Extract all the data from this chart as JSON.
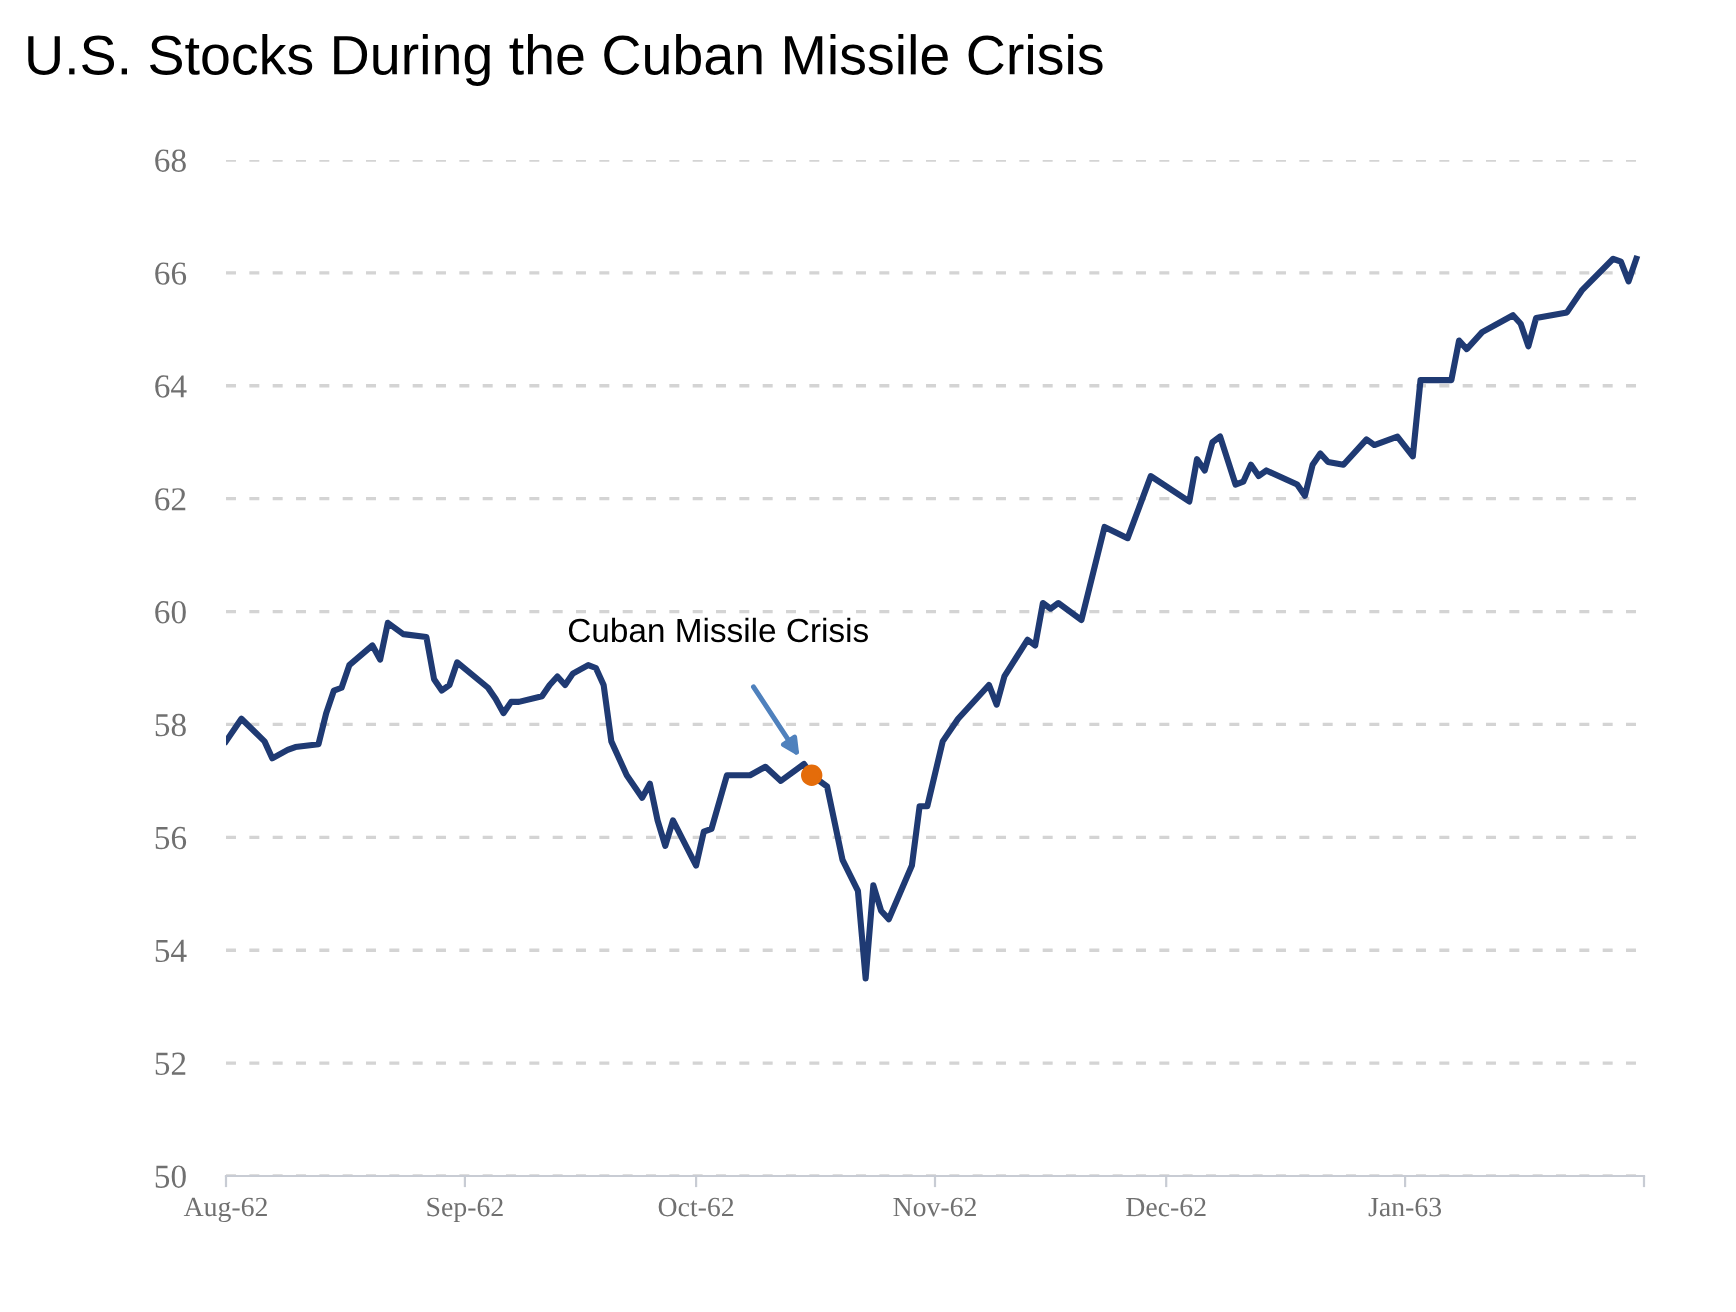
{
  "chart_data": {
    "type": "line",
    "title": "U.S. Stocks During the Cuban Missile Crisis",
    "xlim": [
      "1962-08-01",
      "1963-02-01"
    ],
    "xticks": [
      {
        "value": "1962-08-01",
        "label": "Aug-62"
      },
      {
        "value": "1962-09-01",
        "label": "Sep-62"
      },
      {
        "value": "1962-10-01",
        "label": "Oct-62"
      },
      {
        "value": "1962-11-01",
        "label": "Nov-62"
      },
      {
        "value": "1962-12-01",
        "label": "Dec-62"
      },
      {
        "value": "1963-01-01",
        "label": "Jan-63"
      },
      {
        "value": "1963-02-01",
        "label": null
      }
    ],
    "ylim": [
      50,
      68
    ],
    "yticks": [
      50,
      52,
      54,
      56,
      58,
      60,
      62,
      64,
      66,
      68
    ],
    "grid": "y",
    "legend": false,
    "series": [
      {
        "color": "#1f3a73",
        "marker": "none",
        "line_style": "solid",
        "x": [
          "1962-08-01",
          "1962-08-03",
          "1962-08-06",
          "1962-08-07",
          "1962-08-09",
          "1962-08-10",
          "1962-08-13",
          "1962-08-14",
          "1962-08-15",
          "1962-08-16",
          "1962-08-17",
          "1962-08-20",
          "1962-08-21",
          "1962-08-22",
          "1962-08-24",
          "1962-08-27",
          "1962-08-28",
          "1962-08-29",
          "1962-08-30",
          "1962-08-31",
          "1962-09-04",
          "1962-09-05",
          "1962-09-06",
          "1962-09-07",
          "1962-09-08",
          "1962-09-11",
          "1962-09-12",
          "1962-09-13",
          "1962-09-14",
          "1962-09-15",
          "1962-09-17",
          "1962-09-18",
          "1962-09-19",
          "1962-09-20",
          "1962-09-22",
          "1962-09-24",
          "1962-09-25",
          "1962-09-26",
          "1962-09-27",
          "1962-09-28",
          "1962-10-01",
          "1962-10-02",
          "1962-10-03",
          "1962-10-05",
          "1962-10-08",
          "1962-10-10",
          "1962-10-12",
          "1962-10-15",
          "1962-10-16",
          "1962-10-18",
          "1962-10-20",
          "1962-10-22",
          "1962-10-23",
          "1962-10-24",
          "1962-10-25",
          "1962-10-26",
          "1962-10-29",
          "1962-10-30",
          "1962-10-31",
          "1962-11-02",
          "1962-11-04",
          "1962-11-08",
          "1962-11-09",
          "1962-11-10",
          "1962-11-13",
          "1962-11-14",
          "1962-11-15",
          "1962-11-16",
          "1962-11-17",
          "1962-11-20",
          "1962-11-21",
          "1962-11-23",
          "1962-11-26",
          "1962-11-29",
          "1962-12-04",
          "1962-12-05",
          "1962-12-06",
          "1962-12-07",
          "1962-12-08",
          "1962-12-10",
          "1962-12-11",
          "1962-12-12",
          "1962-12-13",
          "1962-12-14",
          "1962-12-18",
          "1962-12-19",
          "1962-12-20",
          "1962-12-21",
          "1962-12-22",
          "1962-12-24",
          "1962-12-27",
          "1962-12-28",
          "1962-12-31",
          "1963-01-02",
          "1963-01-03",
          "1963-01-07",
          "1963-01-08",
          "1963-01-09",
          "1963-01-11",
          "1963-01-15",
          "1963-01-16",
          "1963-01-17",
          "1963-01-18",
          "1963-01-22",
          "1963-01-24",
          "1963-01-28",
          "1963-01-29",
          "1963-01-30",
          "1963-01-31"
        ],
        "values": [
          57.7,
          58.1,
          57.7,
          57.4,
          57.55,
          57.6,
          57.65,
          58.2,
          58.6,
          58.65,
          59.05,
          59.4,
          59.15,
          59.8,
          59.6,
          59.55,
          58.8,
          58.6,
          58.7,
          59.1,
          58.65,
          58.45,
          58.2,
          58.4,
          58.4,
          58.5,
          58.7,
          58.85,
          58.7,
          58.9,
          59.05,
          59.0,
          58.7,
          57.7,
          57.1,
          56.7,
          56.95,
          56.3,
          55.85,
          56.3,
          55.5,
          56.1,
          56.15,
          57.1,
          57.1,
          57.25,
          57.0,
          57.3,
          57.1,
          56.9,
          55.6,
          55.05,
          53.5,
          55.15,
          54.7,
          54.55,
          55.5,
          56.55,
          56.55,
          57.7,
          58.1,
          58.7,
          58.35,
          58.85,
          59.5,
          59.4,
          60.15,
          60.05,
          60.15,
          59.85,
          60.4,
          61.5,
          61.3,
          62.4,
          61.95,
          62.7,
          62.5,
          63.0,
          63.1,
          62.25,
          62.3,
          62.6,
          62.4,
          62.5,
          62.25,
          62.05,
          62.6,
          62.8,
          62.65,
          62.6,
          63.05,
          62.95,
          63.1,
          62.75,
          64.1,
          64.1,
          64.8,
          64.65,
          64.95,
          65.25,
          65.1,
          64.7,
          65.2,
          65.3,
          65.7,
          66.25,
          66.2,
          65.85,
          66.25
        ]
      },
      {
        "type": "scatter",
        "color": "#e46c0a",
        "marker": "circle",
        "x": [
          "1962-10-16"
        ],
        "values": [
          57.1
        ]
      }
    ],
    "annotations": [
      "Cuban Missile Crisis"
    ]
  }
}
